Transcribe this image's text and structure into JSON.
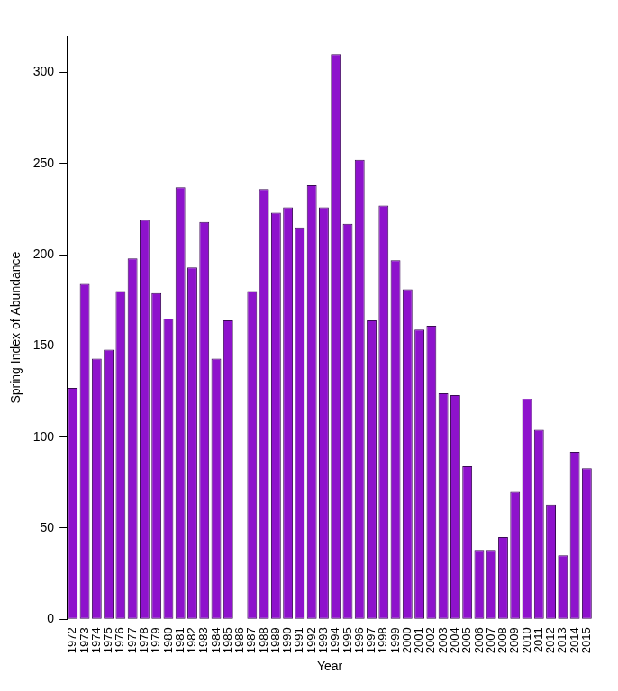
{
  "chart_data": {
    "type": "bar",
    "x_label": "Year",
    "y_label": "Spring Index of Abundance",
    "categories": [
      "1972",
      "1973",
      "1974",
      "1975",
      "1976",
      "1977",
      "1978",
      "1979",
      "1980",
      "1981",
      "1982",
      "1983",
      "1984",
      "1985",
      "1986",
      "1987",
      "1988",
      "1989",
      "1990",
      "1991",
      "1992",
      "1993",
      "1994",
      "1995",
      "1996",
      "1997",
      "1998",
      "1999",
      "2000",
      "2001",
      "2002",
      "2003",
      "2004",
      "2005",
      "2006",
      "2007",
      "2008",
      "2009",
      "2010",
      "2011",
      "2012",
      "2013",
      "2014",
      "2015"
    ],
    "values": [
      127,
      184,
      143,
      148,
      180,
      198,
      219,
      179,
      165,
      237,
      193,
      218,
      143,
      164,
      null,
      180,
      236,
      223,
      226,
      215,
      238,
      226,
      310,
      217,
      252,
      164,
      227,
      197,
      181,
      159,
      161,
      124,
      123,
      84,
      38,
      38,
      45,
      70,
      121,
      104,
      63,
      35,
      92,
      83
    ],
    "color": "#8e12cc",
    "ylim": [
      0,
      320
    ],
    "yticks": [
      0,
      50,
      100,
      150,
      200,
      250,
      300
    ],
    "grid": false
  }
}
